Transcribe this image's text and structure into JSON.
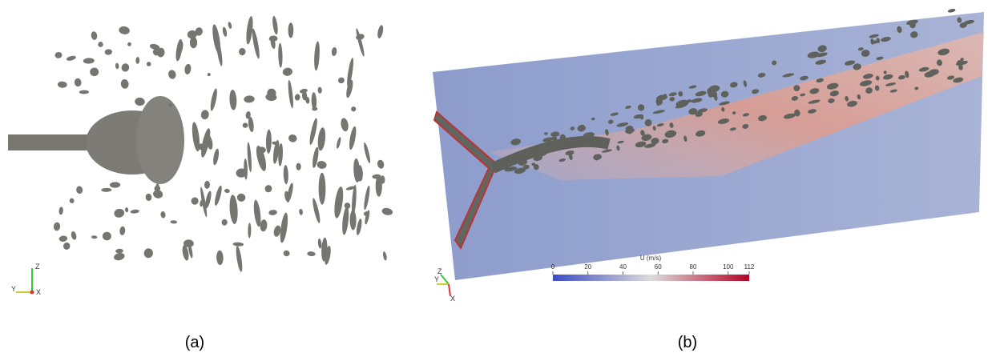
{
  "panels": [
    {
      "caption": "(a)",
      "axes": [
        "Z",
        "Y",
        "X"
      ]
    },
    {
      "caption": "(b)",
      "axes": [
        "Z",
        "Y",
        "X"
      ],
      "colorbar": {
        "title": "U (m/s)",
        "lim": [
          0,
          112
        ],
        "ticks": [
          0,
          20,
          40,
          60,
          80,
          100,
          112
        ]
      }
    }
  ]
}
